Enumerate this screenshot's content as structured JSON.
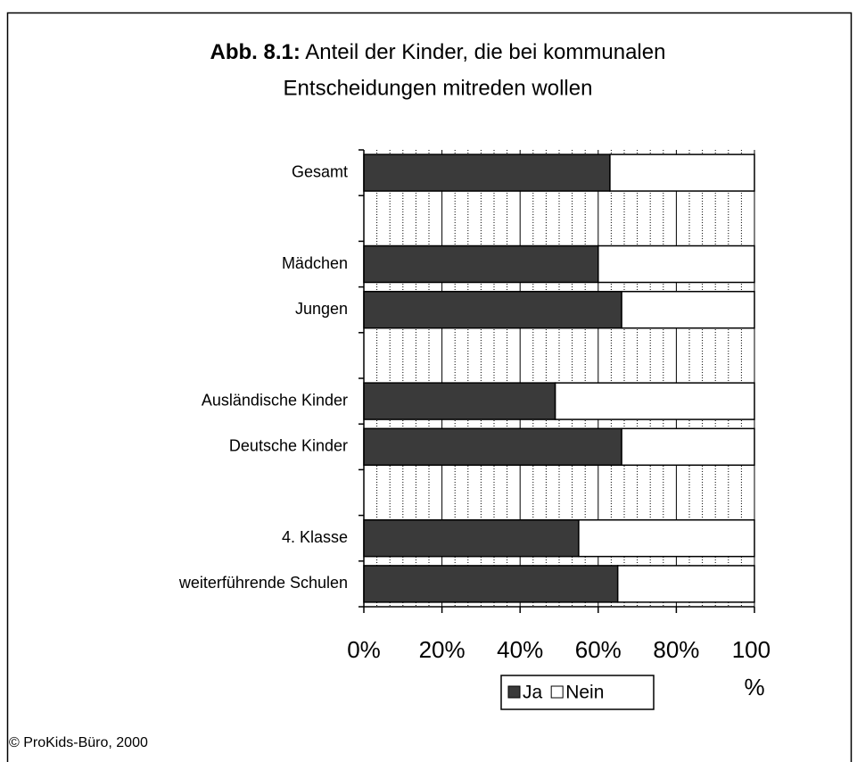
{
  "chart_data": {
    "type": "stacked_barh",
    "title_label": "Abb. 8.1:",
    "title": [
      "Anteil der Kinder, die bei kommunalen",
      "Entscheidungen mitreden wollen"
    ],
    "categories": [
      "Gesamt",
      null,
      "Mädchen",
      "Jungen",
      null,
      "Ausländische Kinder",
      "Deutsche Kinder",
      null,
      "4. Klasse",
      "weiterführende Schulen"
    ],
    "series": [
      {
        "name": "Ja",
        "color": "#3a3a3a",
        "values": [
          63,
          null,
          60,
          66,
          null,
          49,
          66,
          null,
          55,
          65
        ],
        "value_labels": [
          "63%",
          null,
          "60%",
          "66%",
          null,
          "49%",
          "66%",
          null,
          "55%",
          "65%"
        ]
      },
      {
        "name": "Nein",
        "color": "#ffffff",
        "values": [
          37,
          null,
          40,
          34,
          null,
          51,
          34,
          null,
          45,
          35
        ]
      }
    ],
    "xlim": [
      0,
      100
    ],
    "xticks": [
      {
        "value": 0,
        "label": "0%"
      },
      {
        "value": 20,
        "label": "20%"
      },
      {
        "value": 40,
        "label": "40%"
      },
      {
        "value": 60,
        "label": "60%"
      },
      {
        "value": 80,
        "label": "80%"
      },
      {
        "value": 100,
        "label": "100 %"
      }
    ],
    "grid": true,
    "minor_grid_divisions": 6,
    "legend": "bottom",
    "source": "© ProKids-Büro, 2000"
  }
}
